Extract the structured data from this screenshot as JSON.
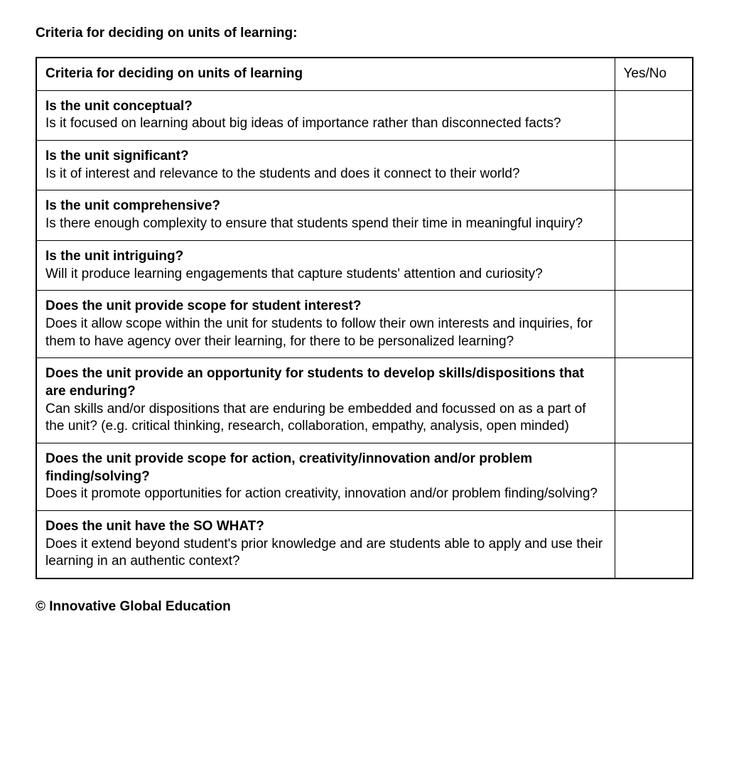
{
  "page_title": "Criteria for deciding on units of learning:",
  "table": {
    "header": {
      "criteria": "Criteria for deciding on units of learning",
      "yesno": "Yes/No"
    },
    "rows": [
      {
        "question": "Is the unit conceptual?",
        "description": "Is it focused on learning about big ideas of importance rather than disconnected facts?",
        "yesno": ""
      },
      {
        "question": "Is the unit significant?",
        "description": "Is it of interest and relevance to the students and does it connect to their world?",
        "yesno": ""
      },
      {
        "question": "Is the unit comprehensive?",
        "description": "Is there enough complexity to ensure that students spend their time in meaningful inquiry?",
        "yesno": ""
      },
      {
        "question": "Is the unit intriguing?",
        "description": "Will it produce learning engagements that capture students' attention and curiosity?",
        "yesno": ""
      },
      {
        "question": "Does the unit provide scope for student interest?",
        "description": "Does it allow scope within the unit for students to follow their own interests and inquiries, for them to have agency over their learning, for there to be personalized learning?",
        "yesno": ""
      },
      {
        "question": "Does the unit provide an opportunity for students to develop skills/dispositions that are enduring?",
        "description": "Can skills and/or dispositions that are enduring be embedded and focussed on as a part of the unit? (e.g. critical thinking, research, collaboration, empathy, analysis, open minded)",
        "yesno": ""
      },
      {
        "question": "Does the unit provide scope for action, creativity/innovation and/or problem finding/solving?",
        "description": "Does it promote opportunities for action creativity, innovation and/or problem finding/solving?",
        "yesno": ""
      },
      {
        "question": "Does the unit have the SO WHAT?",
        "description": "Does it extend beyond student's prior knowledge and are students able to apply and use their learning in an authentic context?",
        "yesno": ""
      }
    ]
  },
  "footer": "© Innovative Global Education",
  "styling": {
    "background_color": "#ffffff",
    "text_color": "#000000",
    "border_color": "#000000",
    "font_family": "Arial",
    "title_fontsize": 19,
    "body_fontsize": 19,
    "column_widths": {
      "criteria": "auto",
      "yesno": 110
    }
  }
}
